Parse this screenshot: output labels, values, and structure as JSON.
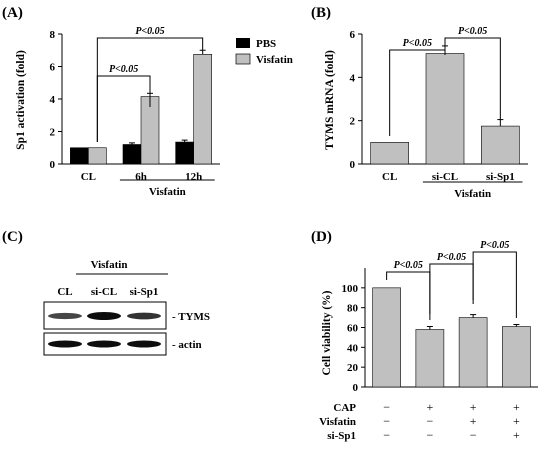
{
  "colors": {
    "pbs": "#000000",
    "visfatin": "#c0c0c0",
    "gray_bar": "#c0c0c0"
  },
  "chart_data": [
    {
      "panel": "(A)",
      "type": "bar",
      "ylabel": "Sp1 activation (fold)",
      "categories": [
        "CL",
        "6h",
        "12h"
      ],
      "group_label": "Visfatin",
      "group_covers": [
        "6h",
        "12h"
      ],
      "ylim": [
        0,
        8
      ],
      "yticks": [
        0,
        2,
        4,
        6,
        8
      ],
      "legend_position": "top-right",
      "series": [
        {
          "name": "PBS",
          "values": [
            1.0,
            1.2,
            1.35
          ],
          "errors": [
            0,
            0.1,
            0.12
          ]
        },
        {
          "name": "Visfatin",
          "values": [
            1.0,
            4.15,
            6.75
          ],
          "errors": [
            0,
            0.2,
            0.25
          ]
        }
      ],
      "annotations": [
        {
          "text": "P<0.05",
          "from": "CL",
          "to": "6h"
        },
        {
          "text": "P<0.05",
          "from": "CL",
          "to": "12h"
        }
      ]
    },
    {
      "panel": "(B)",
      "type": "bar",
      "ylabel": "TYMS mRNA (fold)",
      "categories": [
        "CL",
        "si-CL",
        "si-Sp1"
      ],
      "group_label": "Visfatin",
      "group_covers": [
        "si-CL",
        "si-Sp1"
      ],
      "ylim": [
        0,
        6
      ],
      "yticks": [
        0,
        2,
        4,
        6
      ],
      "values": [
        1.0,
        5.1,
        1.75
      ],
      "errors": [
        0,
        0.35,
        0.3
      ],
      "annotations": [
        {
          "text": "P<0.05",
          "from": "CL",
          "to": "si-CL"
        },
        {
          "text": "P<0.05",
          "from": "si-CL",
          "to": "si-Sp1"
        }
      ]
    },
    {
      "panel": "(D)",
      "type": "bar",
      "ylabel": "Cell viability (%)",
      "categories": [
        "1",
        "2",
        "3",
        "4"
      ],
      "ylim": [
        0,
        120
      ],
      "yticks": [
        0,
        20,
        40,
        60,
        80,
        100
      ],
      "values": [
        100,
        58,
        70,
        61
      ],
      "errors": [
        0,
        3,
        3,
        2
      ],
      "conditions": [
        {
          "name": "CAP",
          "signs": [
            "−",
            "+",
            "+",
            "+"
          ]
        },
        {
          "name": "Visfatin",
          "signs": [
            "−",
            "−",
            "+",
            "+"
          ]
        },
        {
          "name": "si-Sp1",
          "signs": [
            "−",
            "−",
            "−",
            "+"
          ]
        }
      ],
      "annotations": [
        {
          "text": "P<0.05",
          "from": "1",
          "to": "2"
        },
        {
          "text": "P<0.05",
          "from": "2",
          "to": "3"
        },
        {
          "text": "P<0.05",
          "from": "3",
          "to": "4"
        }
      ]
    }
  ],
  "blot": {
    "panel": "(C)",
    "group_label": "Visfatin",
    "lanes": [
      "CL",
      "si-CL",
      "si-Sp1"
    ],
    "bands": [
      {
        "name": "- TYMS",
        "intensities": [
          0.55,
          1.0,
          0.7
        ]
      },
      {
        "name": "- actin",
        "intensities": [
          1.0,
          1.0,
          1.0
        ]
      }
    ]
  }
}
